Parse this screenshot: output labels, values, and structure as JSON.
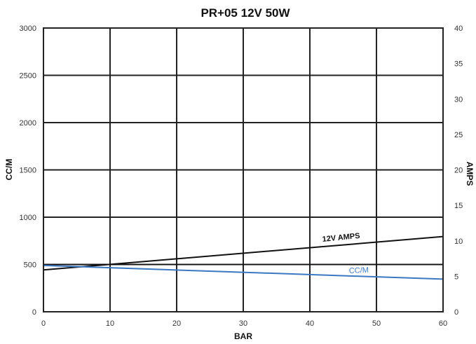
{
  "chart_data": {
    "type": "line",
    "title": "PR+05 12V 50W",
    "xlabel": "BAR",
    "ylabel": "CC/M",
    "y2label": "AMPS",
    "xlim": [
      0,
      60
    ],
    "ylim": [
      0,
      3000
    ],
    "y2lim": [
      0,
      40
    ],
    "x_ticks": [
      "0",
      "10",
      "20",
      "30",
      "40",
      "50",
      "60"
    ],
    "y_ticks": [
      "0",
      "500",
      "1000",
      "1500",
      "2000",
      "2500",
      "3000"
    ],
    "y2_ticks": [
      "0",
      "5",
      "10",
      "15",
      "20",
      "25",
      "30",
      "35",
      "40"
    ],
    "grid": true,
    "series": [
      {
        "name": "12V AMPS",
        "axis": "right",
        "color": "#111111",
        "x": [
          0,
          60
        ],
        "y": [
          5.9,
          10.6
        ]
      },
      {
        "name": "CC/M",
        "axis": "left",
        "color": "#3a78c2",
        "x": [
          0,
          60
        ],
        "y": [
          490,
          345
        ]
      }
    ],
    "reference_lines": [
      {
        "axis": "left",
        "value": 500,
        "color": "#111111"
      }
    ]
  }
}
